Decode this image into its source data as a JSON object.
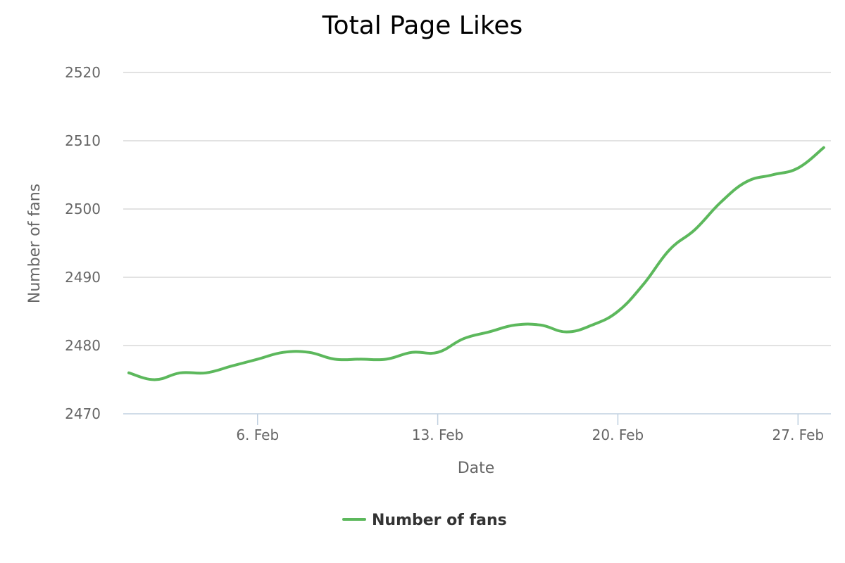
{
  "chart_data": {
    "type": "line",
    "title": "Total Page Likes",
    "xlabel": "Date",
    "ylabel": "Number of fans",
    "ylim": [
      2470,
      2520
    ],
    "y_ticks": [
      "2470",
      "2480",
      "2490",
      "2500",
      "2510",
      "2520"
    ],
    "x_ticks": [
      "6. Feb",
      "13. Feb",
      "20. Feb",
      "27. Feb"
    ],
    "x_tick_days": [
      6,
      13,
      20,
      27
    ],
    "grid": true,
    "legend_position": "bottom-center",
    "x": [
      "1. Feb",
      "2. Feb",
      "3. Feb",
      "4. Feb",
      "5. Feb",
      "6. Feb",
      "7. Feb",
      "8. Feb",
      "9. Feb",
      "10. Feb",
      "11. Feb",
      "12. Feb",
      "13. Feb",
      "14. Feb",
      "15. Feb",
      "16. Feb",
      "17. Feb",
      "18. Feb",
      "19. Feb",
      "20. Feb",
      "21. Feb",
      "22. Feb",
      "23. Feb",
      "24. Feb",
      "25. Feb",
      "26. Feb",
      "27. Feb",
      "28. Feb"
    ],
    "x_days": [
      1,
      2,
      3,
      4,
      5,
      6,
      7,
      8,
      9,
      10,
      11,
      12,
      13,
      14,
      15,
      16,
      17,
      18,
      19,
      20,
      21,
      22,
      23,
      24,
      25,
      26,
      27,
      28
    ],
    "series": [
      {
        "name": "Number of fans",
        "color": "#5cb85c",
        "values": [
          2476,
          2475,
          2476,
          2476,
          2477,
          2478,
          2479,
          2479,
          2478,
          2478,
          2478,
          2479,
          2479,
          2481,
          2482,
          2483,
          2483,
          2482,
          2483,
          2485,
          2489,
          2494,
          2497,
          2501,
          2504,
          2505,
          2506,
          2509
        ]
      }
    ]
  }
}
